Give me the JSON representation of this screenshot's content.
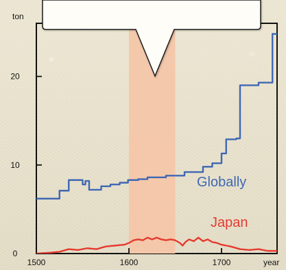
{
  "chart_data": {
    "type": "line",
    "xlabel": "year",
    "ylabel": "ton",
    "xlim": [
      1500,
      1760
    ],
    "ylim": [
      0,
      26
    ],
    "x_ticks": [
      1500,
      1600,
      1700
    ],
    "y_ticks": [
      0,
      10,
      20
    ],
    "highlight_band": {
      "from": 1600,
      "to": 1650,
      "color": "#f4c6a8"
    },
    "series": [
      {
        "name": "Globally",
        "color": "#3f67b3",
        "x": [
          1500,
          1525,
          1525,
          1535,
          1535,
          1550,
          1550,
          1553,
          1553,
          1557,
          1557,
          1570,
          1570,
          1580,
          1580,
          1590,
          1590,
          1599,
          1599,
          1610,
          1610,
          1620,
          1620,
          1640,
          1640,
          1660,
          1660,
          1680,
          1680,
          1690,
          1690,
          1700,
          1700,
          1705,
          1705,
          1716,
          1716,
          1720,
          1720,
          1740,
          1740,
          1755,
          1755,
          1760
        ],
        "values": [
          6.2,
          6.2,
          7.1,
          7.1,
          8.3,
          8.3,
          7.8,
          7.8,
          8.2,
          8.2,
          7.2,
          7.2,
          7.6,
          7.6,
          7.8,
          7.8,
          8.0,
          8.0,
          8.3,
          8.3,
          8.4,
          8.4,
          8.6,
          8.6,
          8.8,
          8.8,
          9.2,
          9.2,
          9.8,
          9.8,
          10.2,
          10.2,
          11.3,
          11.3,
          12.9,
          12.9,
          13.0,
          13.0,
          19.0,
          19.0,
          19.3,
          19.3,
          24.8,
          24.8
        ]
      },
      {
        "name": "Japan",
        "color": "#e53a2f",
        "x": [
          1500,
          1515,
          1525,
          1535,
          1545,
          1555,
          1565,
          1575,
          1585,
          1595,
          1600,
          1605,
          1610,
          1615,
          1620,
          1625,
          1630,
          1635,
          1640,
          1645,
          1650,
          1655,
          1658,
          1661,
          1665,
          1670,
          1675,
          1680,
          1685,
          1690,
          1695,
          1700,
          1705,
          1710,
          1720,
          1730,
          1740,
          1750,
          1760
        ],
        "values": [
          0.0,
          0.1,
          0.2,
          0.5,
          0.4,
          0.6,
          0.5,
          0.8,
          0.9,
          1.0,
          1.2,
          1.5,
          1.6,
          1.5,
          1.8,
          1.6,
          1.8,
          1.6,
          1.5,
          1.6,
          1.5,
          1.2,
          0.9,
          1.3,
          1.6,
          1.4,
          1.8,
          1.4,
          1.6,
          1.3,
          1.2,
          1.0,
          0.9,
          0.8,
          0.5,
          0.4,
          0.5,
          0.3,
          0.3
        ]
      }
    ]
  },
  "annotation": {
    "callout_text": ""
  }
}
